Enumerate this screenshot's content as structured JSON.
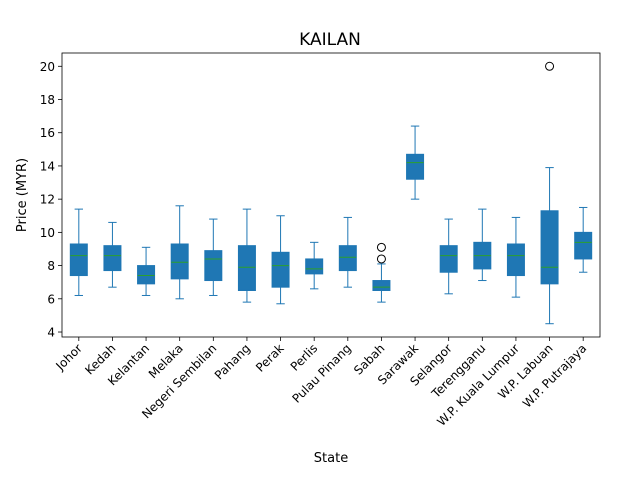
{
  "chart_data": {
    "type": "box",
    "title": "KAILAN",
    "xlabel": "State",
    "ylabel": "Price (MYR)",
    "ylim": [
      3.7,
      20.8
    ],
    "yticks": [
      4,
      6,
      8,
      10,
      12,
      14,
      16,
      18,
      20
    ],
    "grid": false,
    "categories": [
      "Johor",
      "Kedah",
      "Kelantan",
      "Melaka",
      "Negeri Sembilan",
      "Pahang",
      "Perak",
      "Perlis",
      "Pulau Pinang",
      "Sabah",
      "Sarawak",
      "Selangor",
      "Terengganu",
      "W.P. Kuala Lumpur",
      "W.P. Labuan",
      "W.P. Putrajaya"
    ],
    "boxes": [
      {
        "whislo": 6.2,
        "q1": 7.4,
        "med": 8.6,
        "q3": 9.3,
        "whishi": 11.4,
        "fliers": []
      },
      {
        "whislo": 6.7,
        "q1": 7.7,
        "med": 8.6,
        "q3": 9.2,
        "whishi": 10.6,
        "fliers": []
      },
      {
        "whislo": 6.2,
        "q1": 6.9,
        "med": 7.4,
        "q3": 8.0,
        "whishi": 9.1,
        "fliers": []
      },
      {
        "whislo": 6.0,
        "q1": 7.2,
        "med": 8.2,
        "q3": 9.3,
        "whishi": 11.6,
        "fliers": []
      },
      {
        "whislo": 6.2,
        "q1": 7.1,
        "med": 8.4,
        "q3": 8.9,
        "whishi": 10.8,
        "fliers": []
      },
      {
        "whislo": 5.8,
        "q1": 6.5,
        "med": 7.9,
        "q3": 9.2,
        "whishi": 11.4,
        "fliers": []
      },
      {
        "whislo": 5.7,
        "q1": 6.7,
        "med": 8.0,
        "q3": 8.8,
        "whishi": 11.0,
        "fliers": []
      },
      {
        "whislo": 6.6,
        "q1": 7.5,
        "med": 7.8,
        "q3": 8.4,
        "whishi": 9.4,
        "fliers": []
      },
      {
        "whislo": 6.7,
        "q1": 7.7,
        "med": 8.5,
        "q3": 9.2,
        "whishi": 10.9,
        "fliers": []
      },
      {
        "whislo": 5.8,
        "q1": 6.5,
        "med": 6.7,
        "q3": 7.1,
        "whishi": 8.1,
        "fliers": [
          8.4,
          9.1
        ]
      },
      {
        "whislo": 12.0,
        "q1": 13.2,
        "med": 14.2,
        "q3": 14.7,
        "whishi": 16.4,
        "fliers": []
      },
      {
        "whislo": 6.3,
        "q1": 7.6,
        "med": 8.6,
        "q3": 9.2,
        "whishi": 10.8,
        "fliers": []
      },
      {
        "whislo": 7.1,
        "q1": 7.8,
        "med": 8.6,
        "q3": 9.4,
        "whishi": 11.4,
        "fliers": []
      },
      {
        "whislo": 6.1,
        "q1": 7.4,
        "med": 8.6,
        "q3": 9.3,
        "whishi": 10.9,
        "fliers": []
      },
      {
        "whislo": 4.5,
        "q1": 6.9,
        "med": 7.9,
        "q3": 11.3,
        "whishi": 13.9,
        "fliers": [
          20.0
        ]
      },
      {
        "whislo": 7.6,
        "q1": 8.4,
        "med": 9.4,
        "q3": 10.0,
        "whishi": 11.5,
        "fliers": []
      }
    ],
    "colors": {
      "box": "#1f77b4",
      "median": "#2ca02c",
      "flier": "#000000"
    }
  }
}
